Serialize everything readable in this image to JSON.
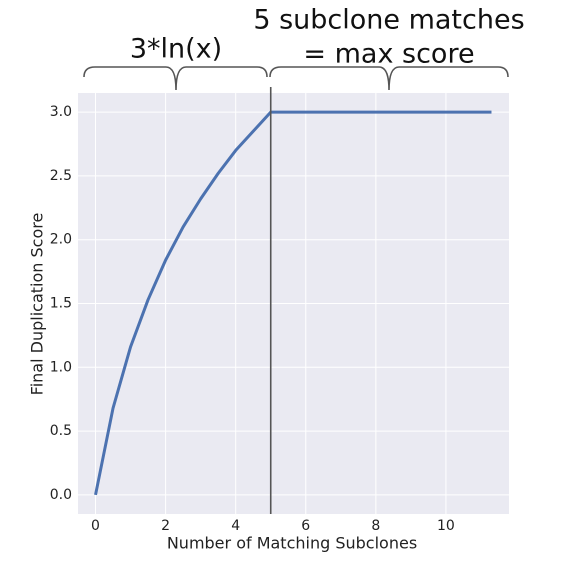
{
  "chart_data": {
    "type": "line",
    "x_label": "Number of Matching Subclones",
    "y_label": "Final Duplication Score",
    "x": [
      0,
      0.5,
      1,
      1.5,
      2,
      2.5,
      3,
      3.5,
      4,
      4.5,
      5,
      11.3
    ],
    "series": [
      {
        "color": "#4c72b0",
        "values": [
          0,
          0.68,
          1.16,
          1.53,
          1.84,
          2.1,
          2.32,
          2.52,
          2.7,
          2.85,
          3,
          3
        ]
      }
    ],
    "xlim": [
      -0.5,
      11.8
    ],
    "ylim": [
      -0.15,
      3.15
    ],
    "xticks": [
      0,
      2,
      4,
      6,
      8,
      10
    ],
    "yticks": [
      {
        "value": 0,
        "label": "0.0"
      },
      0.5,
      {
        "value": 1,
        "label": "1.0"
      },
      1.5,
      {
        "value": 2,
        "label": "2.0"
      },
      2.5,
      {
        "value": 3,
        "label": "3.0"
      }
    ],
    "vline": 5,
    "vline_color": "#555555",
    "background": "#eaeaf2",
    "grid": true,
    "annotations": [
      {
        "text": "3*ln(x)"
      },
      {
        "lines": [
          "5 subclone matches",
          "= max score"
        ]
      }
    ]
  }
}
